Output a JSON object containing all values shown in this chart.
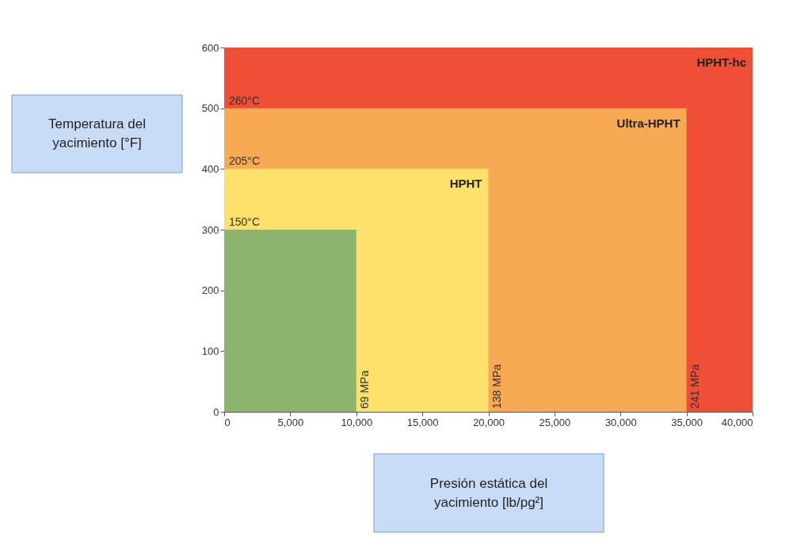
{
  "chart_data": {
    "type": "area",
    "xlabel": "Presión estática del yacimiento [lb/pg²]",
    "ylabel": "Temperatura del yacimiento [°F]",
    "xlim": [
      0,
      40000
    ],
    "xticks": [
      0,
      {
        "value": 5000,
        "label": "5,000"
      },
      {
        "value": 10000,
        "label": "10,000"
      },
      {
        "value": 15000,
        "label": "15,000"
      },
      {
        "value": 20000,
        "label": "20,000"
      },
      {
        "value": 25000,
        "label": "25,000"
      },
      {
        "value": 30000,
        "label": "30,000"
      },
      {
        "value": 35000,
        "label": "35,000"
      },
      {
        "value": 40000,
        "label": "40,000"
      }
    ],
    "ylim": [
      0,
      600
    ],
    "yticks": [
      0,
      100,
      200,
      300,
      400,
      500,
      600
    ],
    "grid": false,
    "series": [
      {
        "name": "HPHT-hc",
        "color": "#ef4e37",
        "x": [
          0,
          40000
        ],
        "values": [
          600,
          600
        ]
      },
      {
        "name": "Ultra-HPHT",
        "color": "#f8a954",
        "x": [
          0,
          35000
        ],
        "values": [
          500,
          500
        ]
      },
      {
        "name": "HPHT",
        "color": "#fde16a",
        "x": [
          0,
          20000
        ],
        "values": [
          400,
          400
        ]
      },
      {
        "color": "#8db46f",
        "x": [
          0,
          10000
        ],
        "values": [
          300,
          300
        ]
      }
    ],
    "annotations": [
      {
        "text": "260°C",
        "x": 0,
        "y": 500
      },
      {
        "text": "205°C",
        "x": 0,
        "y": 400
      },
      {
        "text": "150°C",
        "x": 0,
        "y": 300
      },
      {
        "text": "69 MPa",
        "x": 10000,
        "y": 0
      },
      {
        "text": "138 MPa",
        "x": 20000,
        "y": 0
      },
      {
        "text": "241 MPa",
        "x": 35000,
        "y": 0
      }
    ]
  }
}
